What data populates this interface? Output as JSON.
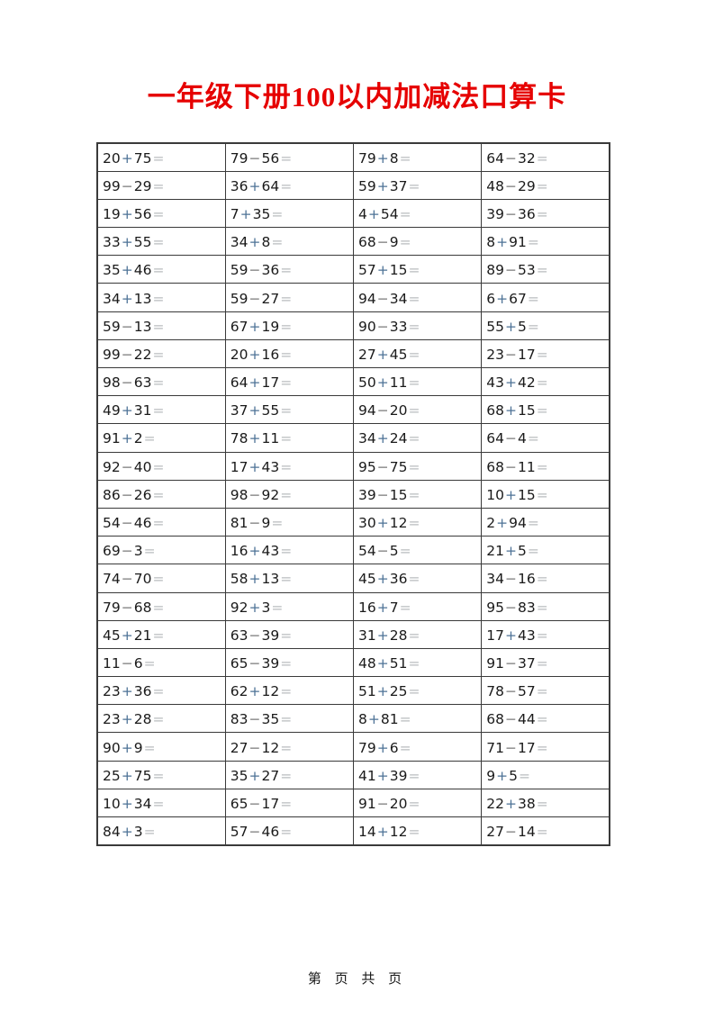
{
  "title": {
    "text": "一年级下册100以内加减法口算卡"
  },
  "table": {
    "rows": [
      [
        "20+75=",
        "79−56=",
        "79+8=",
        "64−32="
      ],
      [
        "99−29=",
        "36+64=",
        "59+37=",
        "48−29="
      ],
      [
        "19+56=",
        "7+35=",
        "4+54=",
        "39−36="
      ],
      [
        "33+55=",
        "34+8=",
        "68−9=",
        "8+91="
      ],
      [
        "35+46=",
        "59−36=",
        "57+15=",
        "89−53="
      ],
      [
        "34+13=",
        "59−27=",
        "94−34=",
        "6+67="
      ],
      [
        "59−13=",
        "67+19=",
        "90−33=",
        "55+5="
      ],
      [
        "99−22=",
        "20+16=",
        "27+45=",
        "23−17="
      ],
      [
        "98−63=",
        "64+17=",
        "50+11=",
        "43+42="
      ],
      [
        "49+31=",
        "37+55=",
        "94−20=",
        "68+15="
      ],
      [
        "91+2=",
        "78+11=",
        "34+24=",
        "64−4="
      ],
      [
        "92−40=",
        "17+43=",
        "95−75=",
        "68−11="
      ],
      [
        "86−26=",
        "98−92=",
        "39−15=",
        "10+15="
      ],
      [
        "54−46=",
        "81−9=",
        "30+12=",
        "2+94="
      ],
      [
        "69−3=",
        "16+43=",
        "54−5=",
        "21+5="
      ],
      [
        "74−70=",
        "58+13=",
        "45+36=",
        "34−16="
      ],
      [
        "79−68=",
        "92+3=",
        "16+7=",
        "95−83="
      ],
      [
        "45+21=",
        "63−39=",
        "31+28=",
        "17+43="
      ],
      [
        "11−6=",
        "65−39=",
        "48+51=",
        "91−37="
      ],
      [
        "23+36=",
        "62+12=",
        "51+25=",
        "78−57="
      ],
      [
        "23+28=",
        "83−35=",
        "8+81=",
        "68−44="
      ],
      [
        "90+9=",
        "27−12=",
        "79+6=",
        "71−17="
      ],
      [
        "25+75=",
        "35+27=",
        "41+39=",
        "9+5="
      ],
      [
        "10+34=",
        "65−17=",
        "91−20=",
        "22+38="
      ],
      [
        "84+3=",
        "57−46=",
        "14+12=",
        "27−14="
      ]
    ]
  },
  "footer": {
    "text": "第 页 共 页"
  },
  "colors": {
    "number": "#1a1a1a",
    "plus": "#4d7296",
    "minus": "#7d7d7d",
    "equals": "#b9bdbf",
    "border": "#3a3a3a",
    "title_red": "#e60000"
  }
}
